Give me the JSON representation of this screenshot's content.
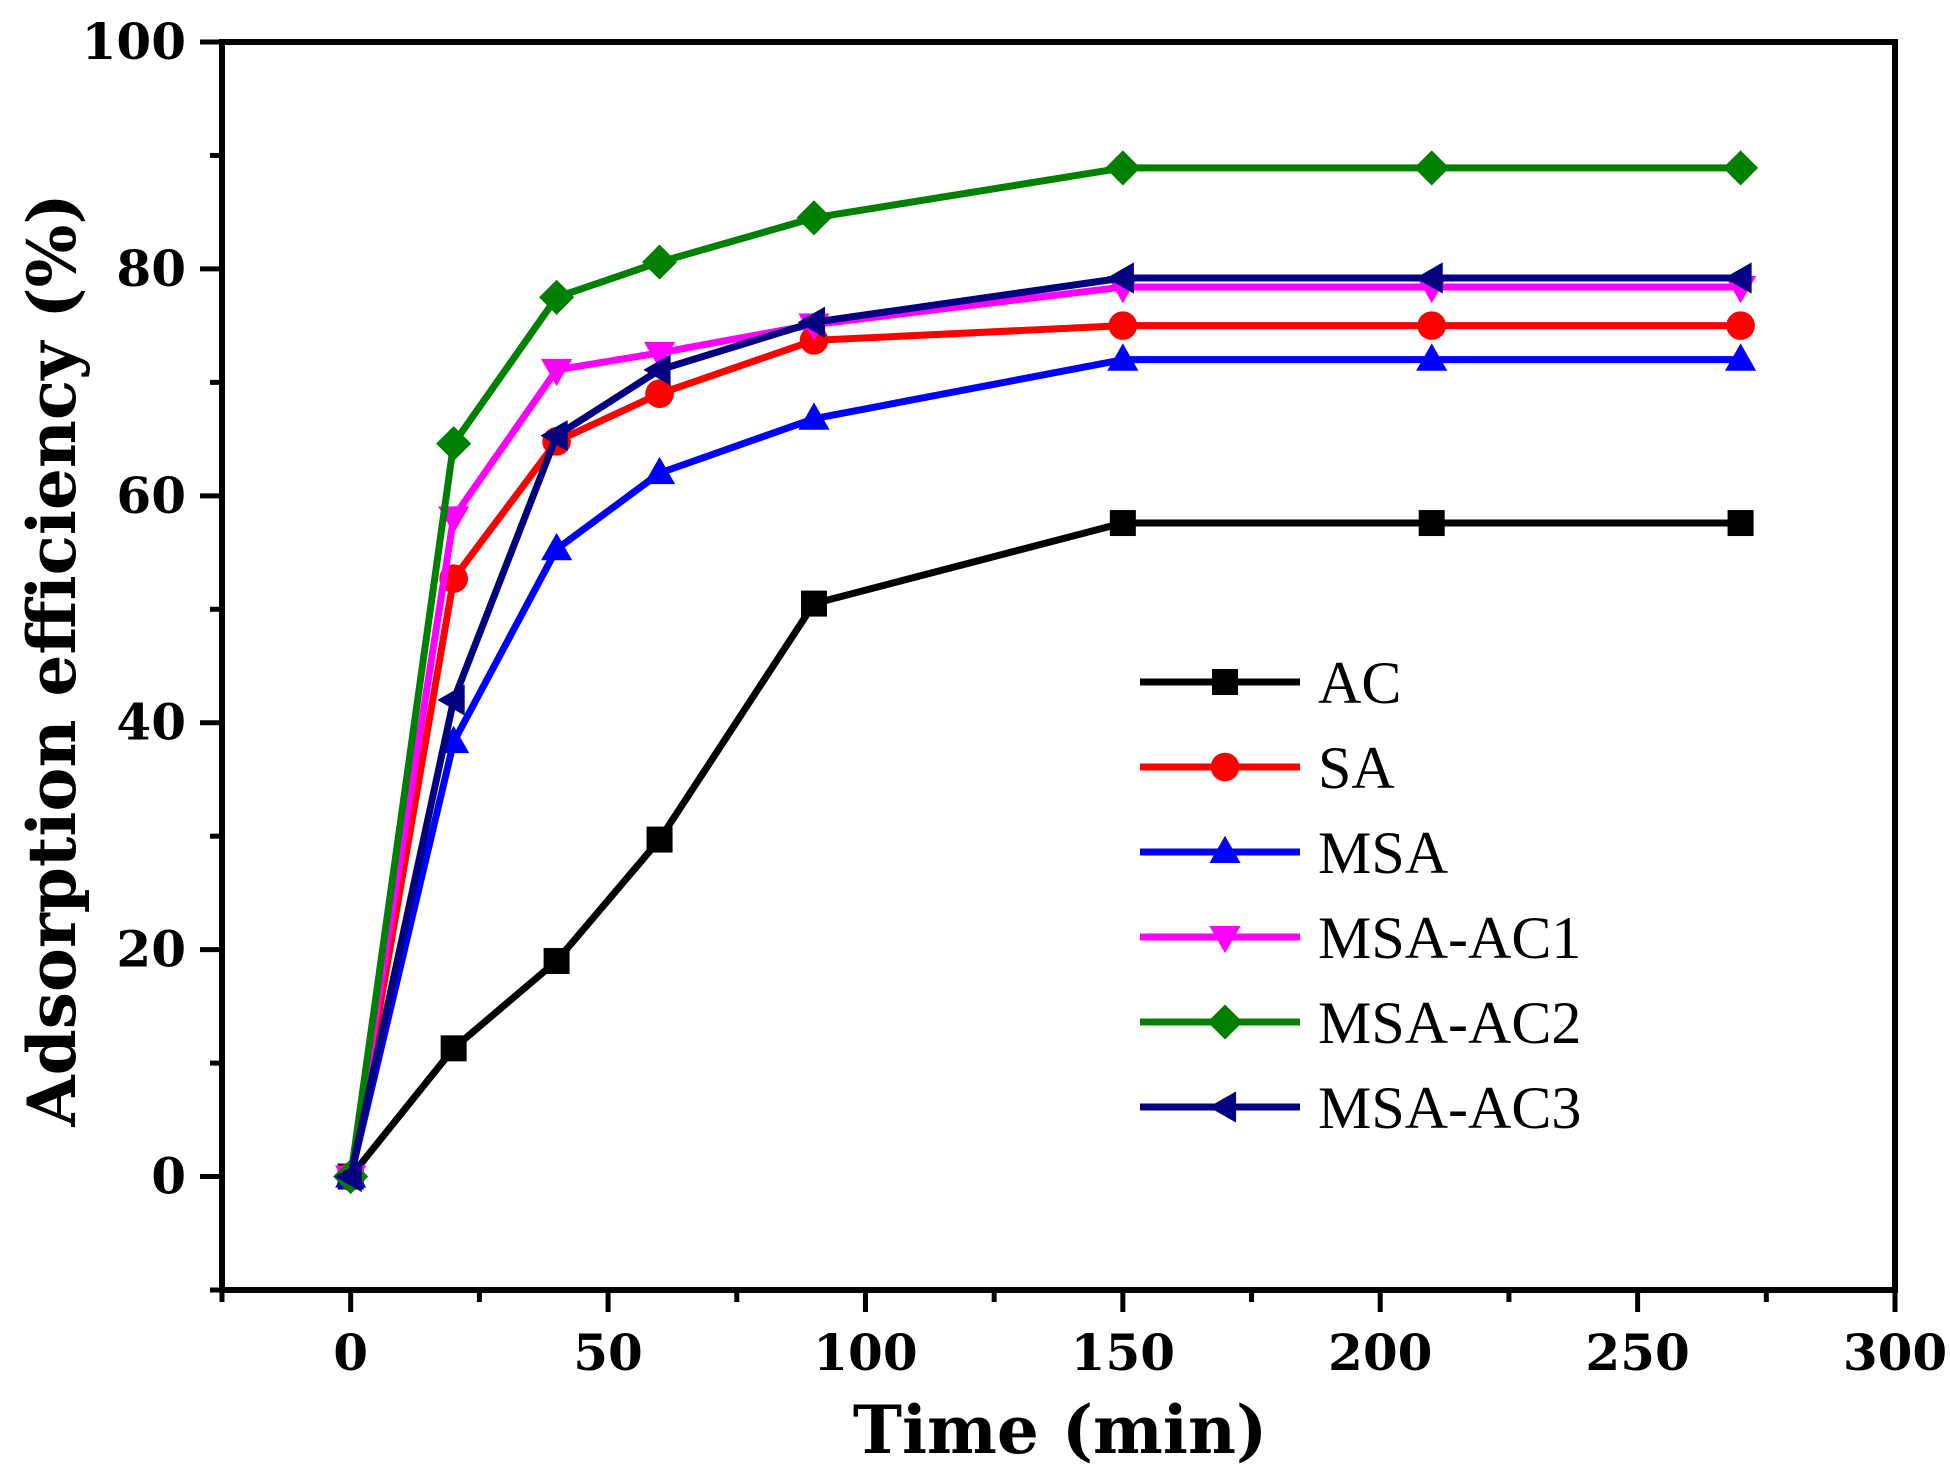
{
  "chart_data": {
    "type": "line",
    "title": "",
    "xlabel": "Time (min)",
    "ylabel": "Adsorption efficiency (%)",
    "xlim": [
      -25,
      300
    ],
    "ylim": [
      -10,
      100
    ],
    "xticks": [
      0,
      50,
      100,
      150,
      200,
      250,
      300
    ],
    "yticks": [
      0,
      20,
      40,
      60,
      80,
      100
    ],
    "x": [
      0,
      20,
      40,
      60,
      90,
      150,
      210,
      270
    ],
    "legend": "center-right",
    "grid": false,
    "series": [
      {
        "name": "AC",
        "color": "#000000",
        "marker": "square",
        "values": [
          0,
          11.3,
          19,
          29.7,
          50.5,
          57.6,
          57.6,
          57.6
        ]
      },
      {
        "name": "SA",
        "color": "#ff0000",
        "marker": "circle",
        "values": [
          0,
          52.7,
          64.8,
          69,
          73.7,
          75,
          75,
          75
        ]
      },
      {
        "name": "MSA",
        "color": "#0000ff",
        "marker": "triangle-up",
        "values": [
          0,
          38.3,
          55.3,
          62,
          66.8,
          72,
          72,
          72
        ]
      },
      {
        "name": "MSA-AC1",
        "color": "#ff00ff",
        "marker": "triangle-down",
        "values": [
          0,
          58.1,
          71.1,
          72.6,
          75.1,
          78.4,
          78.4,
          78.4
        ]
      },
      {
        "name": "MSA-AC2",
        "color": "#008000",
        "marker": "diamond",
        "values": [
          0,
          64.6,
          77.5,
          80.6,
          84.5,
          88.9,
          88.9,
          88.9
        ]
      },
      {
        "name": "MSA-AC3",
        "color": "#000080",
        "marker": "triangle-left",
        "values": [
          0,
          42,
          65.3,
          71.1,
          75.3,
          79.2,
          79.2,
          79.2
        ]
      }
    ]
  }
}
